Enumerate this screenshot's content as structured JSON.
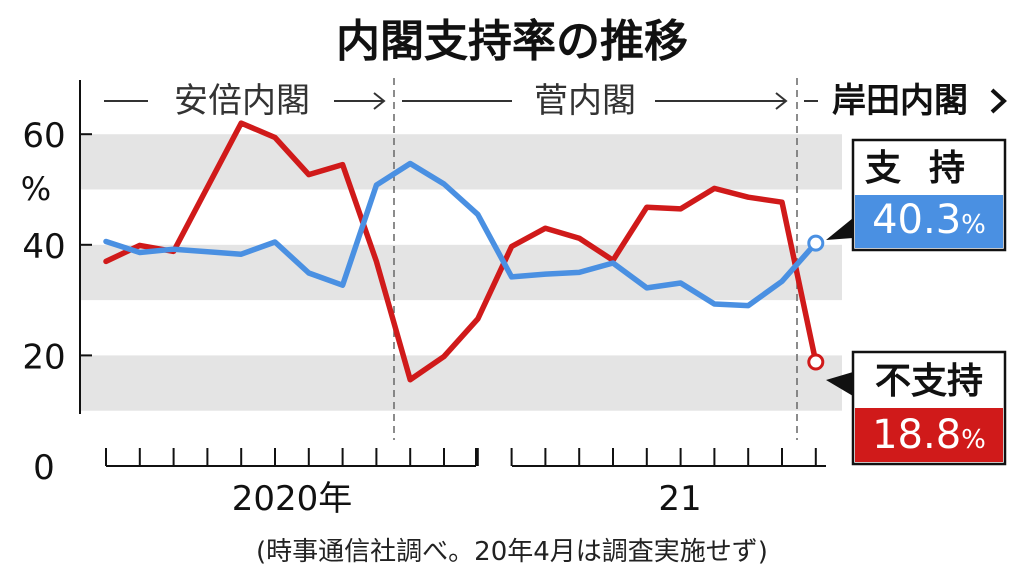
{
  "chart_data": {
    "type": "line",
    "title": "内閣支持率の推移",
    "source_note": "(時事通信社調べ。20年4月は調査実施せず)",
    "y_unit": "%",
    "ylim": [
      0,
      70
    ],
    "y_ticks": [
      0,
      20,
      40,
      60
    ],
    "y_tick_labels": [
      "0",
      "20",
      "40",
      "60"
    ],
    "band_ranges": [
      [
        10,
        20
      ],
      [
        30,
        40
      ],
      [
        50,
        60
      ]
    ],
    "x_year_labels": [
      "2020年",
      "21"
    ],
    "cabinet_periods": [
      {
        "label": "安倍内閣"
      },
      {
        "label": "菅内閣"
      },
      {
        "label": "岸田内閣"
      }
    ],
    "x": [
      "2020-01",
      "2020-02",
      "2020-03",
      "2020-05",
      "2020-06",
      "2020-07",
      "2020-08",
      "2020-09",
      "2020-10",
      "2020-11",
      "2020-12",
      "2021-01",
      "2021-02",
      "2021-03",
      "2021-04",
      "2021-05",
      "2021-06",
      "2021-07",
      "2021-08",
      "2021-09",
      "2021-10"
    ],
    "series": [
      {
        "name": "支持",
        "color": "#4a90e2",
        "values": [
          40.6,
          38.6,
          39.2,
          38.3,
          40.5,
          34.9,
          32.7,
          50.8,
          54.7,
          51.0,
          45.5,
          34.2,
          34.7,
          35.0,
          36.7,
          32.2,
          33.1,
          29.3,
          29.0,
          33.4,
          40.3
        ],
        "latest_label": "40.3",
        "latest_unit": "%"
      },
      {
        "name": "不支持",
        "color": "#d01a1a",
        "values": [
          37.0,
          39.9,
          38.8,
          62.0,
          59.4,
          52.7,
          54.5,
          37.0,
          15.6,
          19.8,
          26.6,
          39.7,
          43.0,
          41.2,
          37.2,
          46.8,
          46.5,
          50.2,
          48.6,
          47.7,
          18.8
        ],
        "latest_label": "18.8",
        "latest_unit": "%"
      }
    ],
    "grid": false,
    "legend": "right"
  }
}
